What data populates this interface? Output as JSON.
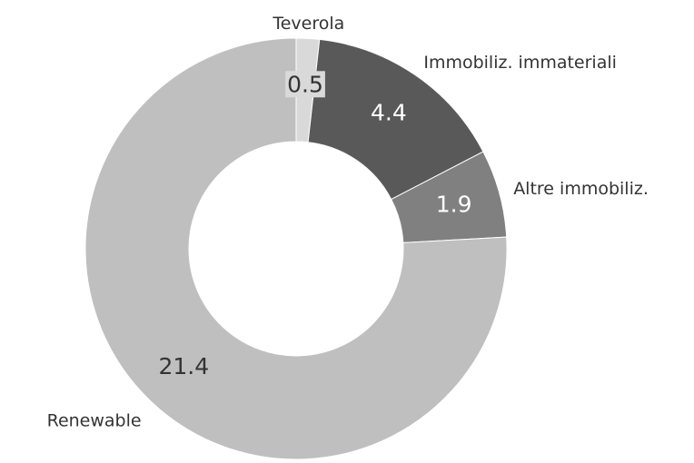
{
  "chart_data": {
    "type": "donut",
    "categories": [
      "Teverola",
      "Immobiliz. immateriali",
      "Altre immobiliz.",
      "Renewable"
    ],
    "values": [
      0.5,
      4.4,
      1.9,
      21.4
    ],
    "colors": [
      "#d9d9d9",
      "#595959",
      "#808080",
      "#bfbfbf"
    ]
  }
}
